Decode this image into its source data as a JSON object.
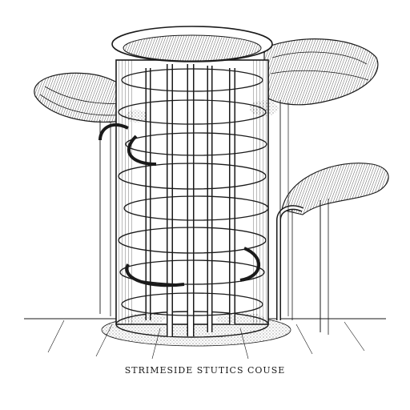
{
  "caption": "STRIMESIDE STUTICS COUSE",
  "colors": {
    "ink": "#1a1a1a",
    "paper": "#ffffff",
    "shade": "#4a4a4a"
  }
}
